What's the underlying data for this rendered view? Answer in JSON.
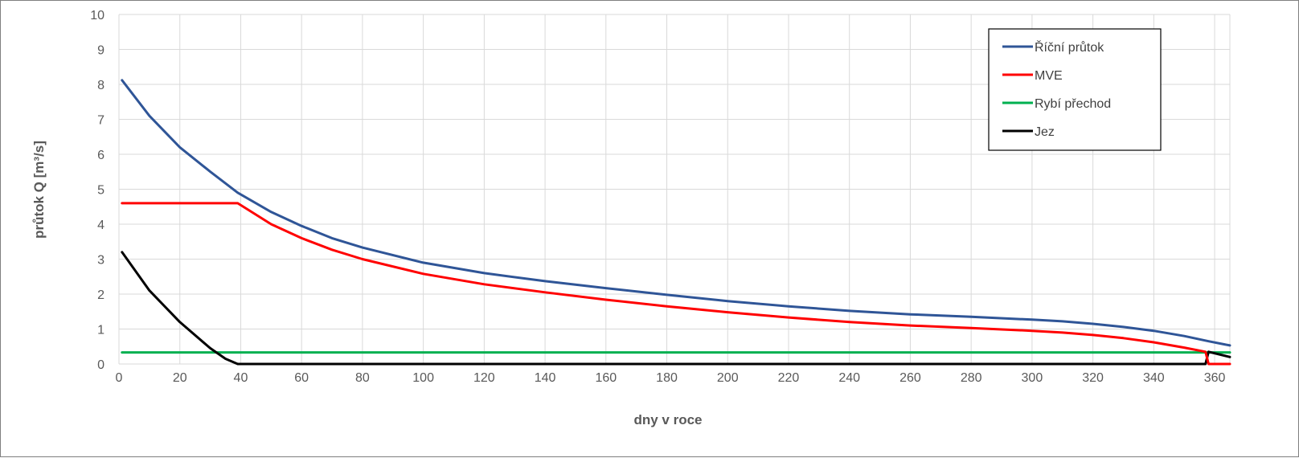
{
  "chart_data": {
    "type": "line",
    "title": "",
    "xlabel": "dny v roce",
    "ylabel": "průtok Q  [m³/s]",
    "xlim": [
      0,
      365
    ],
    "ylim": [
      0,
      10
    ],
    "x_ticks": [
      0,
      20,
      40,
      60,
      80,
      100,
      120,
      140,
      160,
      180,
      200,
      220,
      240,
      260,
      280,
      300,
      320,
      340,
      360
    ],
    "y_ticks": [
      0,
      1,
      2,
      3,
      4,
      5,
      6,
      7,
      8,
      9,
      10
    ],
    "grid": true,
    "legend_position": "top-right",
    "series": [
      {
        "name": "Říční průtok",
        "color": "#2f5597",
        "x": [
          1,
          10,
          20,
          30,
          39,
          50,
          60,
          70,
          80,
          100,
          120,
          140,
          160,
          180,
          200,
          220,
          240,
          260,
          280,
          300,
          310,
          320,
          330,
          340,
          350,
          358,
          365
        ],
        "y": [
          8.12,
          7.1,
          6.2,
          5.5,
          4.9,
          4.35,
          3.95,
          3.6,
          3.33,
          2.9,
          2.6,
          2.37,
          2.17,
          1.98,
          1.8,
          1.65,
          1.52,
          1.42,
          1.35,
          1.27,
          1.22,
          1.15,
          1.06,
          0.95,
          0.8,
          0.65,
          0.53
        ]
      },
      {
        "name": "MVE",
        "color": "#ff0000",
        "x": [
          1,
          39,
          50,
          60,
          70,
          80,
          100,
          120,
          140,
          160,
          180,
          200,
          220,
          240,
          260,
          280,
          300,
          310,
          320,
          330,
          340,
          350,
          357,
          358,
          365
        ],
        "y": [
          4.6,
          4.6,
          4.0,
          3.6,
          3.27,
          3.0,
          2.58,
          2.28,
          2.05,
          1.84,
          1.65,
          1.48,
          1.33,
          1.2,
          1.1,
          1.03,
          0.95,
          0.9,
          0.83,
          0.74,
          0.62,
          0.47,
          0.35,
          0.0,
          0.0
        ]
      },
      {
        "name": "Rybí přechod",
        "color": "#00b050",
        "x": [
          1,
          365
        ],
        "y": [
          0.33,
          0.33
        ]
      },
      {
        "name": "Jez",
        "color": "#000000",
        "x": [
          1,
          10,
          20,
          30,
          35,
          39,
          357,
          358,
          365
        ],
        "y": [
          3.2,
          2.1,
          1.2,
          0.45,
          0.15,
          0.0,
          0.0,
          0.35,
          0.2
        ]
      }
    ]
  }
}
